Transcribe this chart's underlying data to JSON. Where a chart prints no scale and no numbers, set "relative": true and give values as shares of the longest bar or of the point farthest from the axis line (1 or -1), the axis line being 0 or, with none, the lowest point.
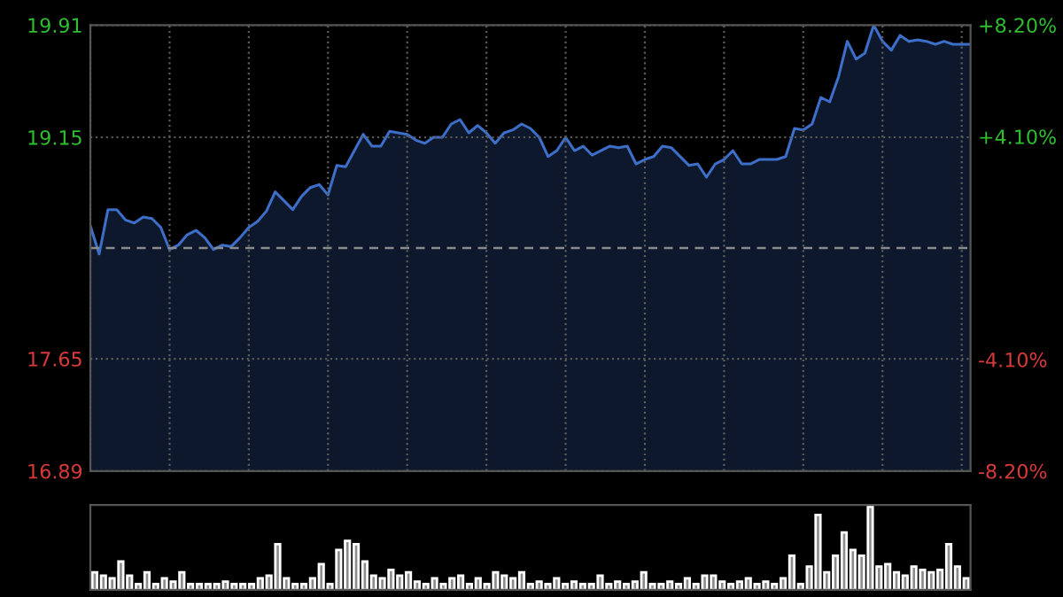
{
  "chart_data": [
    {
      "type": "area",
      "categories": [
        null,
        null,
        null,
        null,
        null,
        null,
        null,
        null,
        null,
        null,
        null,
        null,
        null,
        null,
        null,
        null,
        null,
        null,
        null,
        null,
        null,
        null,
        null,
        null,
        null,
        null,
        null,
        null,
        null,
        null,
        null,
        null,
        null,
        null,
        null,
        null,
        null,
        null,
        null,
        null,
        null,
        null,
        null,
        null,
        null,
        null,
        null,
        null,
        null,
        null,
        null,
        null,
        null,
        null,
        null,
        null,
        null,
        null,
        null,
        null,
        null,
        null,
        null,
        null,
        null,
        null,
        null,
        null,
        null,
        null,
        null,
        null,
        null,
        null,
        null,
        null,
        null,
        null,
        null,
        null,
        null,
        null,
        null,
        null,
        null,
        null,
        null,
        null,
        null,
        null,
        null,
        null,
        null,
        null,
        null,
        null,
        null,
        null,
        null,
        null,
        null
      ],
      "series": [
        {
          "color": "#3d6fc9",
          "values": [
            18.55,
            18.36,
            18.66,
            18.66,
            18.59,
            18.57,
            18.61,
            18.6,
            18.54,
            18.39,
            18.42,
            18.49,
            18.52,
            18.47,
            18.39,
            18.42,
            18.41,
            18.47,
            18.54,
            18.58,
            18.65,
            18.78,
            18.72,
            18.66,
            18.75,
            18.81,
            18.83,
            18.76,
            18.96,
            18.95,
            19.06,
            19.17,
            19.09,
            19.09,
            19.19,
            19.18,
            19.17,
            19.13,
            19.11,
            19.15,
            19.15,
            19.24,
            19.27,
            19.18,
            19.23,
            19.18,
            19.11,
            19.18,
            19.2,
            19.24,
            19.21,
            19.15,
            19.02,
            19.06,
            19.15,
            19.06,
            19.09,
            19.03,
            19.06,
            19.09,
            19.08,
            19.09,
            18.97,
            19.0,
            19.02,
            19.09,
            19.08,
            19.02,
            18.96,
            18.97,
            18.88,
            18.97,
            19.0,
            19.06,
            18.97,
            18.97,
            19.0,
            19.0,
            19.0,
            19.02,
            19.21,
            19.2,
            19.24,
            19.42,
            19.39,
            19.56,
            19.8,
            19.68,
            19.72,
            19.91,
            19.8,
            19.74,
            19.84,
            19.8,
            19.81,
            19.8,
            19.78,
            19.8,
            19.78,
            19.78,
            19.78
          ]
        }
      ],
      "ylim": [
        16.89,
        19.91
      ],
      "yticks": [
        16.89,
        17.65,
        19.15,
        19.91
      ],
      "y2lim": [
        -8.2,
        8.2
      ],
      "y2ticks": [
        {
          "value": -8.2,
          "label": "-8.20%"
        },
        {
          "value": -4.1,
          "label": "-4.10%"
        },
        {
          "value": 4.1,
          "label": "+4.10%"
        },
        {
          "value": 8.2,
          "label": "+8.20%"
        }
      ],
      "ref_lines": [
        {
          "axis": "y",
          "value": 18.4,
          "label": null,
          "line_style": "dashed",
          "color": "#8a8a8a"
        }
      ],
      "grid": true,
      "legend": false
    },
    {
      "type": "bar",
      "relative": true,
      "categories": [
        null,
        null,
        null,
        null,
        null,
        null,
        null,
        null,
        null,
        null,
        null,
        null,
        null,
        null,
        null,
        null,
        null,
        null,
        null,
        null,
        null,
        null,
        null,
        null,
        null,
        null,
        null,
        null,
        null,
        null,
        null,
        null,
        null,
        null,
        null,
        null,
        null,
        null,
        null,
        null,
        null,
        null,
        null,
        null,
        null,
        null,
        null,
        null,
        null,
        null,
        null,
        null,
        null,
        null,
        null,
        null,
        null,
        null,
        null,
        null,
        null,
        null,
        null,
        null,
        null,
        null,
        null,
        null,
        null,
        null,
        null,
        null,
        null,
        null,
        null,
        null,
        null,
        null,
        null,
        null,
        null,
        null,
        null,
        null,
        null,
        null,
        null,
        null,
        null,
        null,
        null,
        null,
        null,
        null,
        null,
        null,
        null,
        null,
        null,
        null,
        null
      ],
      "values": [
        0.21,
        0.17,
        0.14,
        0.34,
        0.17,
        0.07,
        0.21,
        0.07,
        0.14,
        0.1,
        0.21,
        0.07,
        0.07,
        0.07,
        0.07,
        0.1,
        0.07,
        0.07,
        0.07,
        0.14,
        0.17,
        0.55,
        0.14,
        0.07,
        0.07,
        0.14,
        0.31,
        0.07,
        0.48,
        0.59,
        0.55,
        0.34,
        0.17,
        0.14,
        0.24,
        0.17,
        0.21,
        0.1,
        0.07,
        0.14,
        0.07,
        0.14,
        0.17,
        0.07,
        0.14,
        0.07,
        0.21,
        0.17,
        0.14,
        0.21,
        0.07,
        0.1,
        0.07,
        0.14,
        0.07,
        0.1,
        0.07,
        0.07,
        0.17,
        0.07,
        0.1,
        0.07,
        0.1,
        0.21,
        0.07,
        0.07,
        0.1,
        0.07,
        0.14,
        0.07,
        0.17,
        0.17,
        0.1,
        0.07,
        0.1,
        0.14,
        0.07,
        0.1,
        0.07,
        0.14,
        0.41,
        0.07,
        0.28,
        0.9,
        0.21,
        0.41,
        0.69,
        0.48,
        0.41,
        1.0,
        0.28,
        0.31,
        0.21,
        0.17,
        0.28,
        0.24,
        0.21,
        0.24,
        0.55,
        0.28,
        0.14
      ],
      "color": "#8c8c8c",
      "grid": false,
      "legend": false
    }
  ]
}
